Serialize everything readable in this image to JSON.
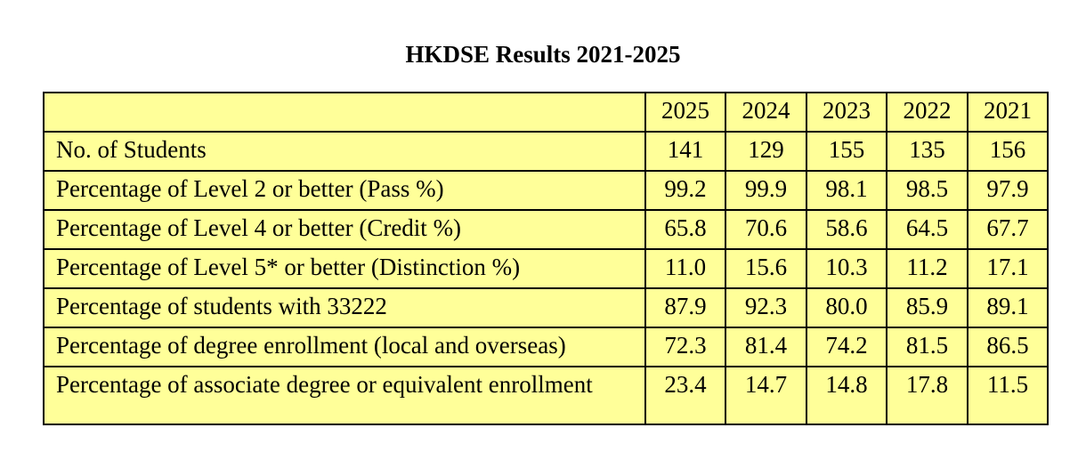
{
  "title": "HKDSE Results 2021-2025",
  "table": {
    "years": [
      "2025",
      "2024",
      "2023",
      "2022",
      "2021"
    ],
    "rows": [
      {
        "label": "No. of Students",
        "values": [
          "141",
          "129",
          "155",
          "135",
          "156"
        ]
      },
      {
        "label": "Percentage of Level 2 or better (Pass %)",
        "values": [
          "99.2",
          "99.9",
          "98.1",
          "98.5",
          "97.9"
        ]
      },
      {
        "label": "Percentage of Level 4 or better (Credit %)",
        "values": [
          "65.8",
          "70.6",
          "58.6",
          "64.5",
          "67.7"
        ]
      },
      {
        "label": "Percentage of Level 5* or better (Distinction %)",
        "values": [
          "11.0",
          "15.6",
          "10.3",
          "11.2",
          "17.1"
        ]
      },
      {
        "label": "Percentage of students with 33222",
        "values": [
          "87.9",
          "92.3",
          "80.0",
          "85.9",
          "89.1"
        ]
      },
      {
        "label": "Percentage of degree enrollment (local and overseas)",
        "values": [
          "72.3",
          "81.4",
          "74.2",
          "81.5",
          "86.5"
        ]
      },
      {
        "label": "Percentage of associate degree or equivalent enrollment",
        "values": [
          "23.4",
          "14.7",
          "14.8",
          "17.8",
          "11.5"
        ]
      }
    ]
  },
  "colors": {
    "table_background": "#ffff99",
    "border": "#000000"
  }
}
